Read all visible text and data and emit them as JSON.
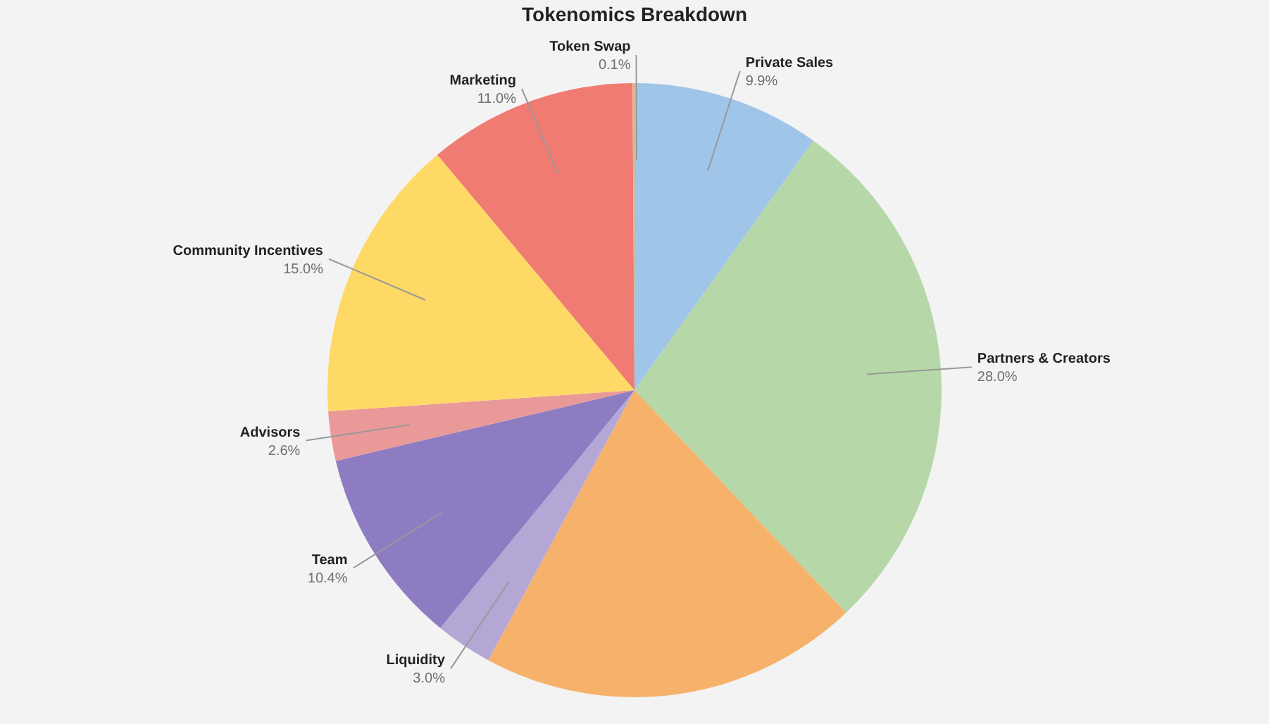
{
  "chart_data": {
    "type": "pie",
    "title": "Tokenomics Breakdown",
    "categories": [
      "Private Sales",
      "Partners & Creators",
      null,
      "Liquidity",
      "Team",
      "Advisors",
      "Community Incentives",
      "Marketing",
      "Token Swap"
    ],
    "values": [
      9.9,
      28.0,
      20.0,
      3.0,
      10.4,
      2.6,
      15.0,
      11.0,
      0.1
    ],
    "value_labels": [
      "9.9%",
      "28.0%",
      null,
      "3.0%",
      "10.4%",
      "2.6%",
      "15.0%",
      "11.0%",
      "0.1%"
    ],
    "colors": [
      "#9fc5e8",
      "#b6d7a8",
      "#f6b26b",
      "#b4a7d6",
      "#8e7cc3",
      "#ea9999",
      "#ffd966",
      "#f07b72",
      "#f6b26b"
    ]
  }
}
